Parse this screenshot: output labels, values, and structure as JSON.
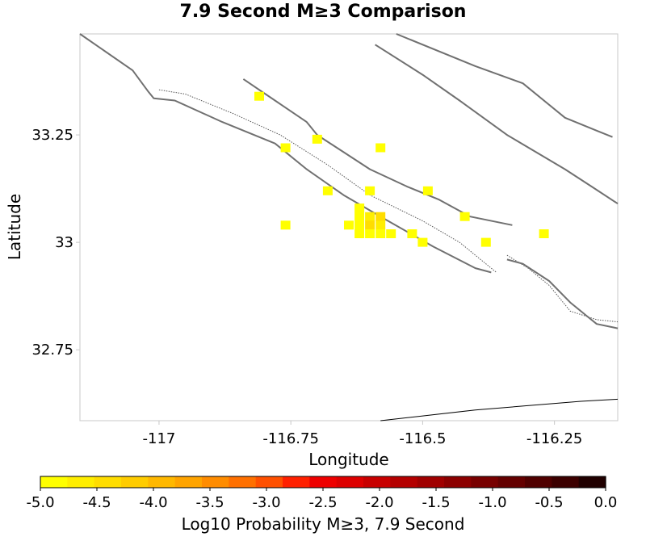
{
  "chart_data": {
    "type": "heatmap",
    "title": "7.9 Second M≥3 Comparison",
    "xlabel": "Longitude",
    "ylabel": "Latitude",
    "xlim": [
      -117.15,
      -116.13
    ],
    "ylim": [
      32.585,
      33.485
    ],
    "x_ticks": [
      {
        "value": -117,
        "label": "-117"
      },
      {
        "value": -116.75,
        "label": "-116.75"
      },
      {
        "value": -116.5,
        "label": "-116.5"
      },
      {
        "value": -116.25,
        "label": "-116.25"
      }
    ],
    "y_ticks": [
      {
        "value": 33.25,
        "label": "33.25"
      },
      {
        "value": 33,
        "label": "33"
      },
      {
        "value": 32.75,
        "label": "32.75"
      }
    ],
    "grid": false,
    "cells": [
      {
        "lon": -116.81,
        "lat": 33.34,
        "v": -5.0
      },
      {
        "lon": -116.76,
        "lat": 33.22,
        "v": -5.0
      },
      {
        "lon": -116.7,
        "lat": 33.24,
        "v": -5.0
      },
      {
        "lon": -116.58,
        "lat": 33.22,
        "v": -5.0
      },
      {
        "lon": -116.68,
        "lat": 33.12,
        "v": -5.0
      },
      {
        "lon": -116.6,
        "lat": 33.12,
        "v": -5.0
      },
      {
        "lon": -116.49,
        "lat": 33.12,
        "v": -5.0
      },
      {
        "lon": -116.62,
        "lat": 33.08,
        "v": -5.0
      },
      {
        "lon": -116.76,
        "lat": 33.04,
        "v": -5.0
      },
      {
        "lon": -116.64,
        "lat": 33.04,
        "v": -5.0
      },
      {
        "lon": -116.62,
        "lat": 33.06,
        "v": -5.0
      },
      {
        "lon": -116.6,
        "lat": 33.06,
        "v": -4.6
      },
      {
        "lon": -116.58,
        "lat": 33.06,
        "v": -4.4
      },
      {
        "lon": -116.62,
        "lat": 33.04,
        "v": -4.9
      },
      {
        "lon": -116.6,
        "lat": 33.04,
        "v": -4.3
      },
      {
        "lon": -116.58,
        "lat": 33.04,
        "v": -4.7
      },
      {
        "lon": -116.62,
        "lat": 33.02,
        "v": -5.0
      },
      {
        "lon": -116.6,
        "lat": 33.02,
        "v": -5.0
      },
      {
        "lon": -116.58,
        "lat": 33.02,
        "v": -5.0
      },
      {
        "lon": -116.56,
        "lat": 33.02,
        "v": -5.0
      },
      {
        "lon": -116.52,
        "lat": 33.02,
        "v": -5.0
      },
      {
        "lon": -116.5,
        "lat": 33.0,
        "v": -5.0
      },
      {
        "lon": -116.42,
        "lat": 33.06,
        "v": -5.0
      },
      {
        "lon": -116.38,
        "lat": 33.0,
        "v": -5.0
      },
      {
        "lon": -116.27,
        "lat": 33.02,
        "v": -5.0
      }
    ],
    "colorbar": {
      "label": "Log10 Probability M≥3, 7.9 Second",
      "min": -5.0,
      "max": 0.0,
      "tick_labels": [
        "-5.0",
        "-4.5",
        "-4.0",
        "-3.5",
        "-3.0",
        "-2.5",
        "-2.0",
        "-1.5",
        "-1.0",
        "-0.5",
        "0.0"
      ],
      "colors": [
        "#ffff00",
        "#ffee00",
        "#ffdd00",
        "#ffcc00",
        "#ffb800",
        "#ffa400",
        "#ff8c00",
        "#ff7000",
        "#ff5000",
        "#ff2000",
        "#ee0000",
        "#dd0000",
        "#c80000",
        "#b40000",
        "#a00000",
        "#8c0000",
        "#780000",
        "#640000",
        "#500000",
        "#3c0000",
        "#200000"
      ]
    }
  },
  "map": {
    "fault_color": "#707070",
    "coast_color": "#000000",
    "faults": [
      [
        [
          -117.15,
          33.485
        ],
        [
          -117.05,
          33.4
        ],
        [
          -117.02,
          33.35
        ],
        [
          -117.01,
          33.335
        ],
        [
          -116.97,
          33.33
        ],
        [
          -116.88,
          33.28
        ],
        [
          -116.78,
          33.23
        ],
        [
          -116.72,
          33.17
        ],
        [
          -116.65,
          33.11
        ],
        [
          -116.58,
          33.06
        ],
        [
          -116.48,
          32.99
        ],
        [
          -116.4,
          32.94
        ],
        [
          -116.37,
          32.93
        ]
      ],
      [
        [
          -116.84,
          33.38
        ],
        [
          -116.78,
          33.33
        ],
        [
          -116.72,
          33.28
        ],
        [
          -116.7,
          33.25
        ],
        [
          -116.65,
          33.21
        ],
        [
          -116.6,
          33.17
        ],
        [
          -116.53,
          33.13
        ],
        [
          -116.47,
          33.1
        ],
        [
          -116.41,
          33.06
        ],
        [
          -116.33,
          33.04
        ]
      ],
      [
        [
          -116.34,
          32.96
        ],
        [
          -116.31,
          32.95
        ],
        [
          -116.26,
          32.91
        ],
        [
          -116.22,
          32.86
        ],
        [
          -116.19,
          32.83
        ],
        [
          -116.17,
          32.81
        ],
        [
          -116.13,
          32.8
        ]
      ],
      [
        [
          -116.59,
          33.46
        ],
        [
          -116.5,
          33.39
        ],
        [
          -116.43,
          33.33
        ],
        [
          -116.34,
          33.25
        ],
        [
          -116.23,
          33.17
        ],
        [
          -116.18,
          33.13
        ],
        [
          -116.13,
          33.09
        ]
      ],
      [
        [
          -116.55,
          33.485
        ],
        [
          -116.4,
          33.41
        ],
        [
          -116.31,
          33.37
        ],
        [
          -116.23,
          33.29
        ],
        [
          -116.17,
          33.26
        ],
        [
          -116.14,
          33.245
        ]
      ]
    ],
    "dotted_traces": [
      [
        [
          -117.0,
          33.355
        ],
        [
          -116.95,
          33.345
        ],
        [
          -116.86,
          33.3
        ],
        [
          -116.77,
          33.25
        ],
        [
          -116.68,
          33.18
        ],
        [
          -116.6,
          33.11
        ],
        [
          -116.5,
          33.05
        ],
        [
          -116.43,
          33.0
        ],
        [
          -116.37,
          32.94
        ],
        [
          -116.36,
          32.93
        ]
      ],
      [
        [
          -116.34,
          32.97
        ],
        [
          -116.3,
          32.94
        ],
        [
          -116.26,
          32.9
        ],
        [
          -116.22,
          32.84
        ],
        [
          -116.17,
          32.82
        ],
        [
          -116.13,
          32.815
        ]
      ]
    ],
    "coastline": [
      [
        -116.58,
        32.585
      ],
      [
        -116.4,
        32.61
      ],
      [
        -116.2,
        32.63
      ],
      [
        -116.13,
        32.635
      ]
    ]
  }
}
